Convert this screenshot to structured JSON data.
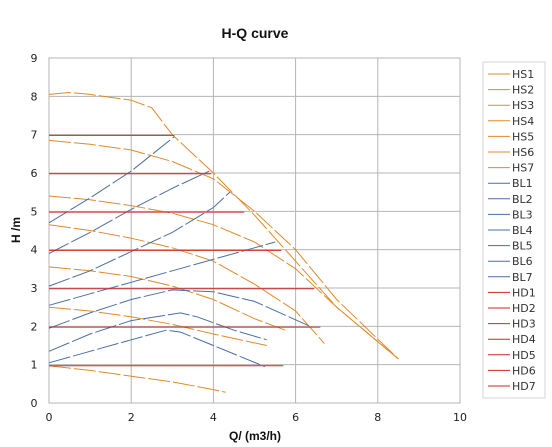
{
  "chart_data": {
    "type": "line",
    "title": "H-Q  curve",
    "xlabel": "Q/ (m3/h)",
    "ylabel": "H /m",
    "xlim": [
      0,
      10
    ],
    "ylim": [
      0,
      9
    ],
    "xticks": [
      "0",
      "2",
      "4",
      "6",
      "8",
      "10"
    ],
    "yticks": [
      "0",
      "1",
      "2",
      "3",
      "4",
      "5",
      "6",
      "7",
      "8",
      "9"
    ],
    "grid": true,
    "legend_position": "right",
    "colors": {
      "HS": "#e08a2a",
      "BL": "#4a6fa5",
      "HD": "#d0262a"
    },
    "series": [
      {
        "name": "HS1",
        "group": "HS",
        "x": [
          0,
          1,
          2,
          3,
          4,
          4.3
        ],
        "y": [
          0.97,
          0.85,
          0.7,
          0.55,
          0.35,
          0.28
        ]
      },
      {
        "name": "HS2",
        "group": "HS",
        "x": [
          0,
          1,
          2,
          3,
          4,
          5.3
        ],
        "y": [
          2.5,
          2.4,
          2.25,
          2.05,
          1.8,
          1.5
        ]
      },
      {
        "name": "HS3",
        "group": "HS",
        "x": [
          0,
          1,
          2,
          3,
          4,
          5,
          5.75
        ],
        "y": [
          3.55,
          3.45,
          3.3,
          3.05,
          2.7,
          2.2,
          1.9
        ]
      },
      {
        "name": "HS4",
        "group": "HS",
        "x": [
          0,
          1,
          2,
          3,
          4,
          5,
          6,
          6.7
        ],
        "y": [
          4.65,
          4.5,
          4.3,
          4.05,
          3.7,
          3.1,
          2.4,
          1.55
        ]
      },
      {
        "name": "HS5",
        "group": "HS",
        "x": [
          0,
          1,
          2,
          3,
          4,
          5,
          6,
          7,
          8.5
        ],
        "y": [
          5.4,
          5.3,
          5.15,
          4.95,
          4.65,
          4.2,
          3.5,
          2.5,
          1.15
        ]
      },
      {
        "name": "HS6",
        "group": "HS",
        "x": [
          0,
          1,
          2,
          3,
          4,
          5,
          6,
          7,
          8.5
        ],
        "y": [
          6.85,
          6.75,
          6.6,
          6.3,
          5.85,
          5.0,
          4.0,
          2.7,
          1.15
        ]
      },
      {
        "name": "HS7",
        "group": "HS",
        "x": [
          0,
          0.5,
          1,
          2,
          2.5,
          3,
          4,
          5,
          6,
          7,
          8.5
        ],
        "y": [
          8.05,
          8.1,
          8.05,
          7.9,
          7.7,
          7.0,
          6.0,
          4.9,
          3.7,
          2.5,
          1.15
        ]
      },
      {
        "name": "BL1",
        "group": "BL",
        "x": [
          0,
          1,
          2,
          2.85,
          3.2,
          4,
          5.25
        ],
        "y": [
          1.05,
          1.35,
          1.65,
          1.9,
          1.85,
          1.5,
          0.95
        ]
      },
      {
        "name": "BL2",
        "group": "BL",
        "x": [
          0,
          1,
          2,
          3.2,
          3.6,
          4.5,
          5.3
        ],
        "y": [
          1.35,
          1.8,
          2.15,
          2.35,
          2.25,
          1.9,
          1.65
        ]
      },
      {
        "name": "BL3",
        "group": "BL",
        "x": [
          0,
          1,
          2,
          3,
          4,
          5,
          6.35
        ],
        "y": [
          1.95,
          2.35,
          2.7,
          2.95,
          2.9,
          2.65,
          2.0
        ]
      },
      {
        "name": "BL4",
        "group": "BL",
        "x": [
          0,
          1,
          2,
          3,
          4,
          5,
          5.5
        ],
        "y": [
          2.55,
          2.85,
          3.15,
          3.45,
          3.75,
          4.05,
          4.2
        ]
      },
      {
        "name": "BL5",
        "group": "BL",
        "x": [
          0,
          1,
          2,
          3,
          4,
          4.4
        ],
        "y": [
          3.05,
          3.45,
          3.95,
          4.45,
          5.1,
          5.5
        ]
      },
      {
        "name": "BL6",
        "group": "BL",
        "x": [
          0,
          1,
          2,
          3,
          3.9
        ],
        "y": [
          3.9,
          4.45,
          5.05,
          5.6,
          6.05
        ]
      },
      {
        "name": "BL7",
        "group": "BL",
        "x": [
          0,
          1,
          2,
          3.05
        ],
        "y": [
          4.7,
          5.35,
          6.05,
          6.95
        ]
      },
      {
        "name": "HD1",
        "group": "HD",
        "x": [
          0,
          5.7
        ],
        "y": [
          0.97,
          0.97
        ]
      },
      {
        "name": "HD2",
        "group": "HD",
        "x": [
          0,
          6.6
        ],
        "y": [
          1.98,
          1.98
        ]
      },
      {
        "name": "HD3",
        "group": "HD",
        "x": [
          0,
          6.45
        ],
        "y": [
          2.98,
          2.98
        ]
      },
      {
        "name": "HD4",
        "group": "HD",
        "x": [
          0,
          5.65
        ],
        "y": [
          3.98,
          3.98
        ]
      },
      {
        "name": "HD5",
        "group": "HD",
        "x": [
          0,
          4.75
        ],
        "y": [
          4.98,
          4.98
        ]
      },
      {
        "name": "HD6",
        "group": "HD",
        "x": [
          0,
          3.95
        ],
        "y": [
          5.98,
          5.98
        ]
      },
      {
        "name": "HD7",
        "group": "HD",
        "x": [
          0,
          3.05
        ],
        "y": [
          6.98,
          6.98
        ]
      }
    ]
  }
}
